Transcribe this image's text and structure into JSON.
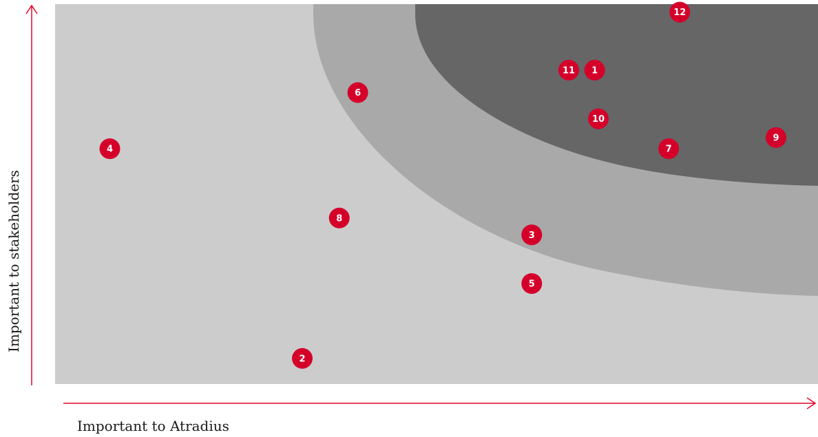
{
  "chart_data": {
    "type": "scatter",
    "xlabel": "Important to Atradius",
    "ylabel": "Important to stakeholders",
    "xlim": [
      0,
      100
    ],
    "ylim": [
      0,
      100
    ],
    "grid": false,
    "zones": [
      "low",
      "medium",
      "high"
    ],
    "colors": {
      "zone_low": "#cccccc",
      "zone_medium": "#a9a9a9",
      "zone_high": "#666666",
      "marker": "#d4002a",
      "axis": "#e30528",
      "marker_text": "#ffffff"
    },
    "points": [
      {
        "label": "1",
        "x": 71.5,
        "y": 82
      },
      {
        "label": "2",
        "x": 32,
        "y": 5
      },
      {
        "label": "3",
        "x": 63,
        "y": 38
      },
      {
        "label": "4",
        "x": 6,
        "y": 61
      },
      {
        "label": "5",
        "x": 63,
        "y": 25
      },
      {
        "label": "6",
        "x": 39.5,
        "y": 76
      },
      {
        "label": "7",
        "x": 81.5,
        "y": 61
      },
      {
        "label": "8",
        "x": 37,
        "y": 42.5
      },
      {
        "label": "9",
        "x": 96,
        "y": 64
      },
      {
        "label": "10",
        "x": 72,
        "y": 69
      },
      {
        "label": "11",
        "x": 68,
        "y": 82
      },
      {
        "label": "12",
        "x": 83,
        "y": 97.5
      }
    ]
  }
}
